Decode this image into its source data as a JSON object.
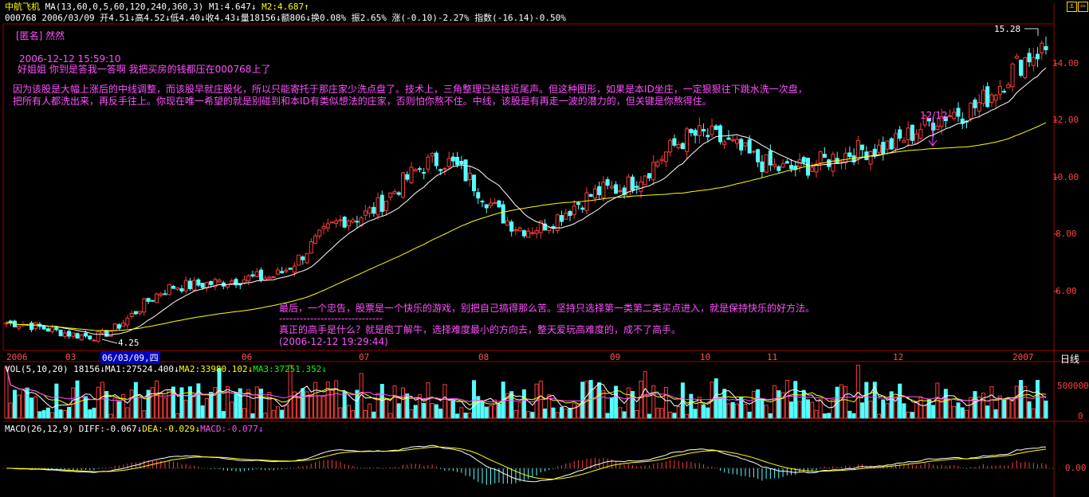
{
  "header": {
    "stock_name": "中航飞机",
    "ma_params": "MA(13,60,0,5,60,120,240,360,3)",
    "m1": "M1:4.647",
    "m2": "M2:4.687",
    "code_date": "000768 2006/03/09",
    "open": "开4.51",
    "high": "高4.52",
    "low": "低4.40",
    "close": "收4.43",
    "volume": "量18156",
    "amount": "额806",
    "turnover": "换0.08%",
    "amplitude": "振2.65%",
    "change": "涨(-0.10)-2.27%",
    "index": "指数(-16.14)-0.50%"
  },
  "annotations": {
    "top_author": "[匿名] 然然",
    "top_time": "2006-12-12 15:59:10",
    "top_question": "好姐姐 你到是答我一答啊 我把买房的钱都压在000768上了",
    "reply_line1": "因为该股是大幅上涨后的中线调整，而该股早就庄股化，所以只能寄托于那庄家少洗点盘了。技术上，三角整理已经接近尾声。但这种图形，如果是本ID坐庄，一定狠狠往下跳水洗一次盘，",
    "reply_line2": "把所有人都洗出来，再反手往上。你现在唯一希望的就是别碰到和本ID有类似想法的庄家，否则怕你熬不住。中线，该股是有再走一波的潜力的，但关键是你熬得住。",
    "arrow_label": "12/12",
    "bottom_line1": "最后，一个忠告，股票是一个快乐的游戏，别把自己搞得那么苦。坚持只选择第一类第二类买点进入，就是保持快乐的好方法。",
    "bottom_divider": "------------------------------",
    "bottom_line2": "真正的高手是什么？就是庖丁解牛，选择难度最小的方向去，整天爱玩高难度的，成不了高手。",
    "bottom_time": "(2006-12-12 19:29:44)",
    "high_label": "15.28",
    "low_label": "4.25"
  },
  "price_axis": [
    "14.00",
    "12.00",
    "10.00",
    "8.00",
    "6.00"
  ],
  "date_axis": [
    "2006",
    "03",
    "06/03/09,四",
    "06",
    "07",
    "08",
    "09",
    "10",
    "11",
    "12",
    "2007"
  ],
  "period_label": "日线",
  "vol_header": {
    "label": "VOL(5,10,20)",
    "value": "18156",
    "ma1": "MA1:27524.400",
    "ma2": "MA2:33980.102",
    "ma3": "MA3:37251.352"
  },
  "vol_axis": [
    "500000",
    "0"
  ],
  "macd_header": {
    "label": "MACD(26,12,9)",
    "diff": "DIFF:-0.067",
    "dea": "DEA:-0.029",
    "macd": "MACD:-0.077"
  },
  "macd_axis": [
    "0.00"
  ],
  "colors": {
    "up": "#ff3b3b",
    "down": "#54ffff",
    "ma_short": "#ffffff",
    "ma_long": "#ffff00",
    "grid": "#a00000",
    "annotation": "#ff50ff"
  },
  "chart_data": {
    "type": "candlestick",
    "period": "daily",
    "price_range": [
      4.0,
      15.5
    ],
    "highest": 15.28,
    "lowest": 4.25,
    "close_key_points": [
      {
        "x": "2006-01",
        "close": 4.9
      },
      {
        "x": "2006-03-09",
        "close": 4.43
      },
      {
        "x": "2006-04",
        "close": 6.2
      },
      {
        "x": "2006-05",
        "close": 6.5
      },
      {
        "x": "2006-06",
        "close": 8.6
      },
      {
        "x": "2006-07",
        "close": 10.6
      },
      {
        "x": "2006-08",
        "close": 8.2
      },
      {
        "x": "2006-09",
        "close": 9.6
      },
      {
        "x": "2006-10",
        "close": 11.5
      },
      {
        "x": "2006-11",
        "close": 10.3
      },
      {
        "x": "2006-12-12",
        "close": 11.0
      },
      {
        "x": "2007-01",
        "close": 12.3
      },
      {
        "x": "2007-02",
        "close": 14.5
      }
    ]
  }
}
